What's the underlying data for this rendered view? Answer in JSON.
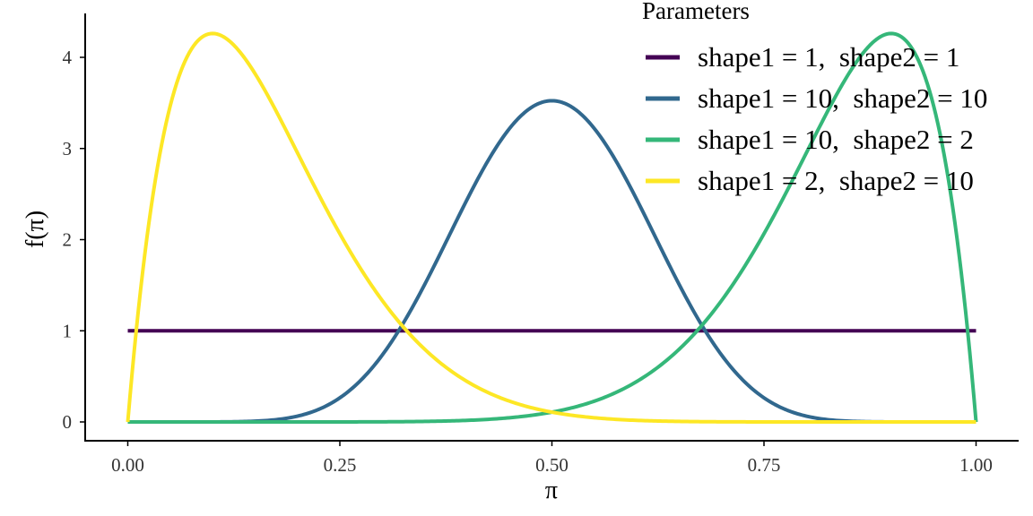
{
  "chart_data": {
    "type": "line",
    "title": "",
    "xlabel": "π",
    "ylabel": "f(π)",
    "xlim": [
      0,
      1
    ],
    "ylim": [
      0,
      4.25
    ],
    "x_ticks": [
      0,
      0.25,
      0.5,
      0.75,
      1
    ],
    "x_tick_labels": [
      "0.00",
      "0.25",
      "0.50",
      "0.75",
      "1.00"
    ],
    "y_ticks": [
      0,
      1,
      2,
      3,
      4
    ],
    "y_tick_labels": [
      "0",
      "1",
      "2",
      "3",
      "4"
    ],
    "grid": false,
    "legend": {
      "title": "Parameters",
      "placement": "top-right"
    },
    "series": [
      {
        "name": "shape1 = 1,  shape2 = 1",
        "shape1": 1,
        "shape2": 1,
        "color": "#440154",
        "x": [
          0,
          0.1,
          0.2,
          0.3,
          0.4,
          0.5,
          0.6,
          0.7,
          0.8,
          0.9,
          1.0
        ],
        "values": [
          1,
          1,
          1,
          1,
          1,
          1,
          1,
          1,
          1,
          1,
          1
        ]
      },
      {
        "name": "shape1 = 10,  shape2 = 10",
        "shape1": 10,
        "shape2": 10,
        "color": "#31688E",
        "x": [
          0,
          0.1,
          0.2,
          0.3,
          0.4,
          0.5,
          0.6,
          0.7,
          0.8,
          0.9,
          1.0
        ],
        "values": [
          0,
          0.0,
          0.05,
          0.62,
          2.4,
          3.52,
          2.4,
          0.62,
          0.05,
          0.0,
          0
        ]
      },
      {
        "name": "shape1 = 10,  shape2 = 2",
        "shape1": 10,
        "shape2": 2,
        "color": "#35B779",
        "x": [
          0,
          0.1,
          0.2,
          0.3,
          0.4,
          0.5,
          0.6,
          0.7,
          0.8,
          0.9,
          1.0
        ],
        "values": [
          0,
          0.0,
          0.0,
          0.0,
          0.03,
          0.11,
          0.44,
          1.33,
          2.95,
          4.26,
          0
        ]
      },
      {
        "name": "shape1 = 2,  shape2 = 10",
        "shape1": 2,
        "shape2": 10,
        "color": "#FDE725",
        "x": [
          0,
          0.1,
          0.2,
          0.3,
          0.4,
          0.5,
          0.6,
          0.7,
          0.8,
          0.9,
          1.0
        ],
        "values": [
          0,
          4.26,
          2.95,
          1.33,
          0.44,
          0.11,
          0.03,
          0.0,
          0.0,
          0.0,
          0
        ]
      }
    ]
  }
}
